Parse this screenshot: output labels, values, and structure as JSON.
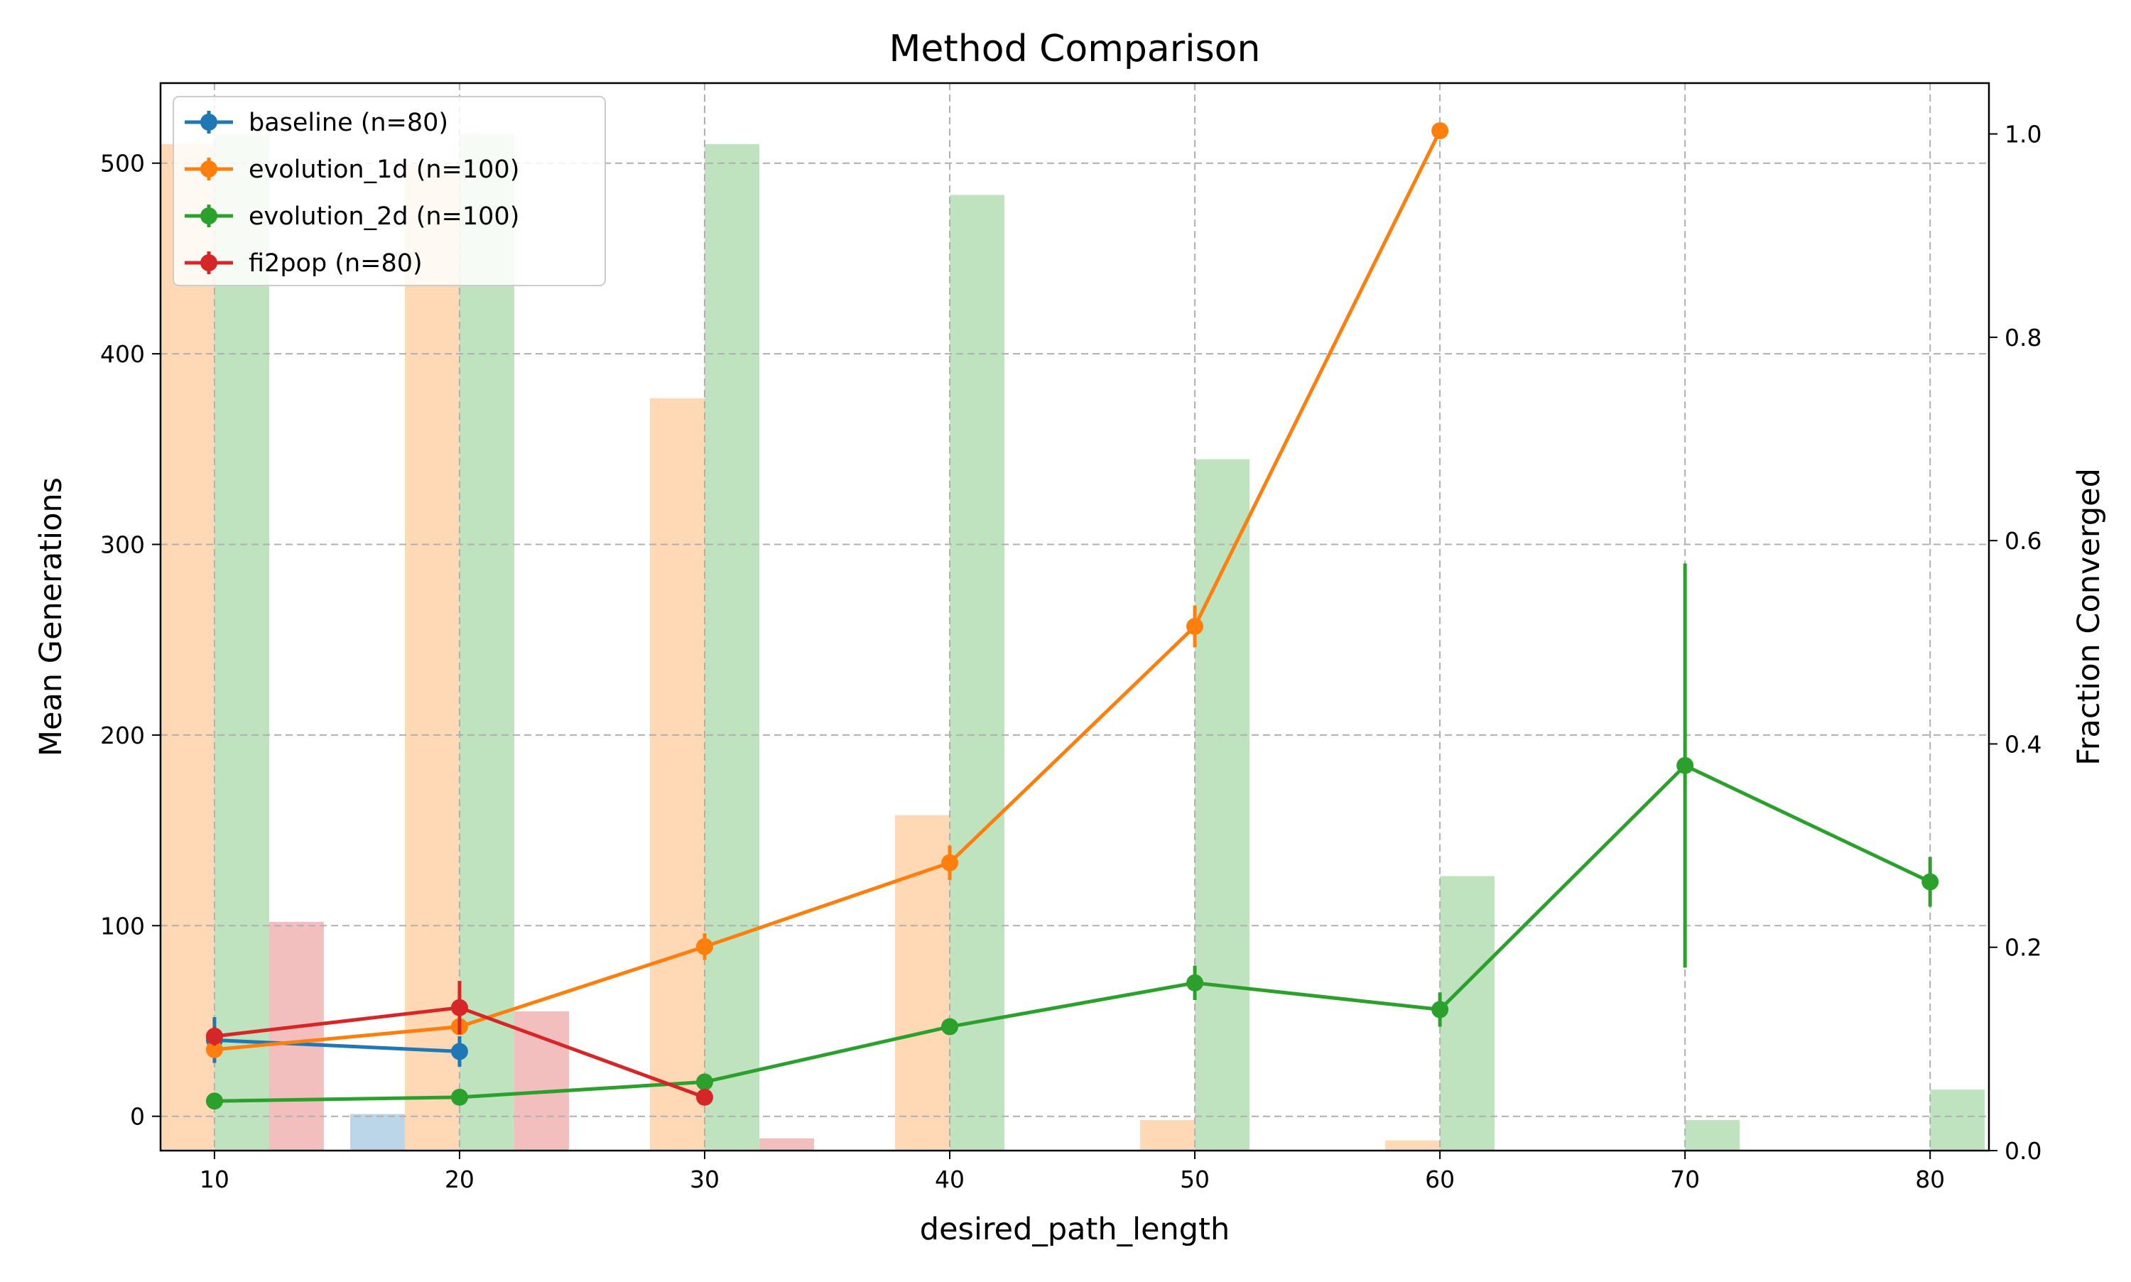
{
  "chart_data": {
    "type": "line",
    "title": "Method Comparison",
    "xlabel": "desired_path_length",
    "ylabel": "Mean Generations",
    "y2label": "Fraction Converged",
    "x_ticks": [
      10,
      20,
      30,
      40,
      50,
      60,
      70,
      80
    ],
    "y_ticks": [
      0,
      100,
      200,
      300,
      400,
      500
    ],
    "y2_ticks": [
      "0.0",
      "0.2",
      "0.4",
      "0.6",
      "0.8",
      "1.0"
    ],
    "xlim": [
      7.8,
      82.4
    ],
    "ylim": [
      -18,
      542
    ],
    "y2lim": [
      0,
      1.05
    ],
    "grid": true,
    "legend_position": "top-left",
    "series": [
      {
        "name": "baseline (n=80)",
        "color": "#1f77b4",
        "x": [
          10,
          20
        ],
        "y": [
          40,
          34
        ],
        "err": [
          12,
          8
        ],
        "fraction_converged": [
          {
            "x": 10,
            "value": 0.0
          },
          {
            "x": 20,
            "value": 0.036
          }
        ]
      },
      {
        "name": "evolution_1d (n=100)",
        "color": "#ff7f0e",
        "x": [
          10,
          20,
          30,
          40,
          50,
          60
        ],
        "y": [
          35,
          47,
          89,
          133,
          257,
          517
        ],
        "err": [
          4,
          4,
          7,
          9,
          11,
          4
        ],
        "fraction_converged": [
          {
            "x": 10,
            "value": 0.99
          },
          {
            "x": 20,
            "value": 0.97
          },
          {
            "x": 30,
            "value": 0.74
          },
          {
            "x": 40,
            "value": 0.33
          },
          {
            "x": 50,
            "value": 0.03
          },
          {
            "x": 60,
            "value": 0.01
          }
        ]
      },
      {
        "name": "evolution_2d (n=100)",
        "color": "#2ca02c",
        "x": [
          10,
          20,
          30,
          40,
          50,
          60,
          70,
          80
        ],
        "y": [
          8,
          10,
          18,
          47,
          70,
          56,
          184,
          123
        ],
        "err": [
          2,
          2,
          3,
          3,
          9,
          9,
          106,
          13
        ],
        "fraction_converged": [
          {
            "x": 10,
            "value": 1.0
          },
          {
            "x": 20,
            "value": 1.0
          },
          {
            "x": 30,
            "value": 0.99
          },
          {
            "x": 40,
            "value": 0.94
          },
          {
            "x": 50,
            "value": 0.68
          },
          {
            "x": 60,
            "value": 0.27
          },
          {
            "x": 70,
            "value": 0.03
          },
          {
            "x": 80,
            "value": 0.06
          }
        ]
      },
      {
        "name": "fi2pop (n=80)",
        "color": "#d62728",
        "x": [
          10,
          20,
          30
        ],
        "y": [
          42,
          57,
          10
        ],
        "err": [
          5,
          14,
          4
        ],
        "fraction_converged": [
          {
            "x": 10,
            "value": 0.225
          },
          {
            "x": 20,
            "value": 0.137
          },
          {
            "x": 30,
            "value": 0.012
          }
        ]
      }
    ]
  }
}
